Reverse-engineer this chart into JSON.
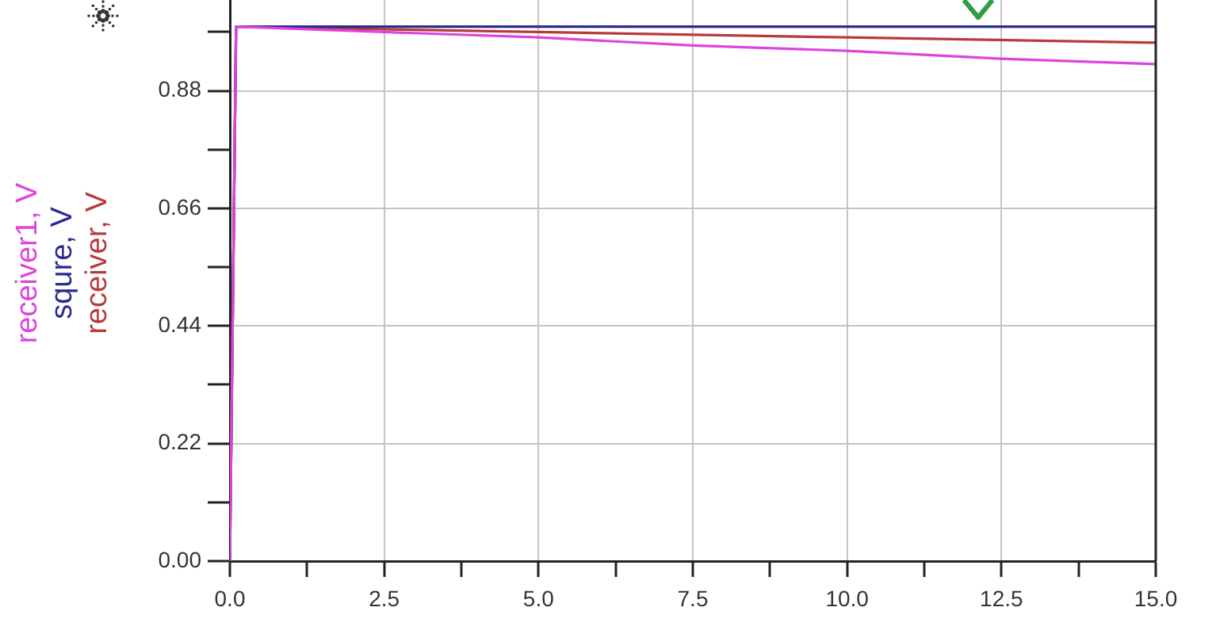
{
  "chart_data": {
    "type": "line",
    "series": [
      {
        "name": "receiver1, V",
        "color": "#dd44dd",
        "x": [
          0,
          0.1,
          2.5,
          5,
          7.5,
          10,
          12.5,
          15
        ],
        "values": [
          0,
          1.0,
          0.99,
          0.98,
          0.965,
          0.955,
          0.94,
          0.93
        ]
      },
      {
        "name": "squre, V",
        "color": "#2b2b8f",
        "x": [
          0,
          0.1,
          15
        ],
        "values": [
          0,
          1.0,
          1.0
        ]
      },
      {
        "name": "receiver, V",
        "color": "#b83a3a",
        "x": [
          0,
          0.1,
          5,
          10,
          15
        ],
        "values": [
          0,
          1.0,
          0.99,
          0.98,
          0.97
        ]
      }
    ],
    "xlim": [
      0,
      15
    ],
    "xticks": [
      {
        "value": 0,
        "label": "0.0"
      },
      {
        "value": 1.25,
        "label": null
      },
      2.5,
      {
        "value": 3.75,
        "label": null
      },
      {
        "value": 5,
        "label": "5.0"
      },
      {
        "value": 6.25,
        "label": null
      },
      7.5,
      {
        "value": 8.75,
        "label": null
      },
      {
        "value": 10,
        "label": "10.0"
      },
      {
        "value": 11.25,
        "label": null
      },
      12.5,
      {
        "value": 13.75,
        "label": null
      },
      {
        "value": 15,
        "label": "15.0"
      }
    ],
    "ylim": [
      0,
      1.05
    ],
    "yticks": [
      {
        "value": 0,
        "label": "0.00"
      },
      {
        "value": 0.11,
        "label": null
      },
      0.22,
      {
        "value": 0.33,
        "label": null
      },
      0.44,
      {
        "value": 0.55,
        "label": null
      },
      0.66,
      {
        "value": 0.77,
        "label": null
      },
      0.88,
      {
        "value": 0.99,
        "label": null
      }
    ],
    "grid": true,
    "legend": "left"
  }
}
